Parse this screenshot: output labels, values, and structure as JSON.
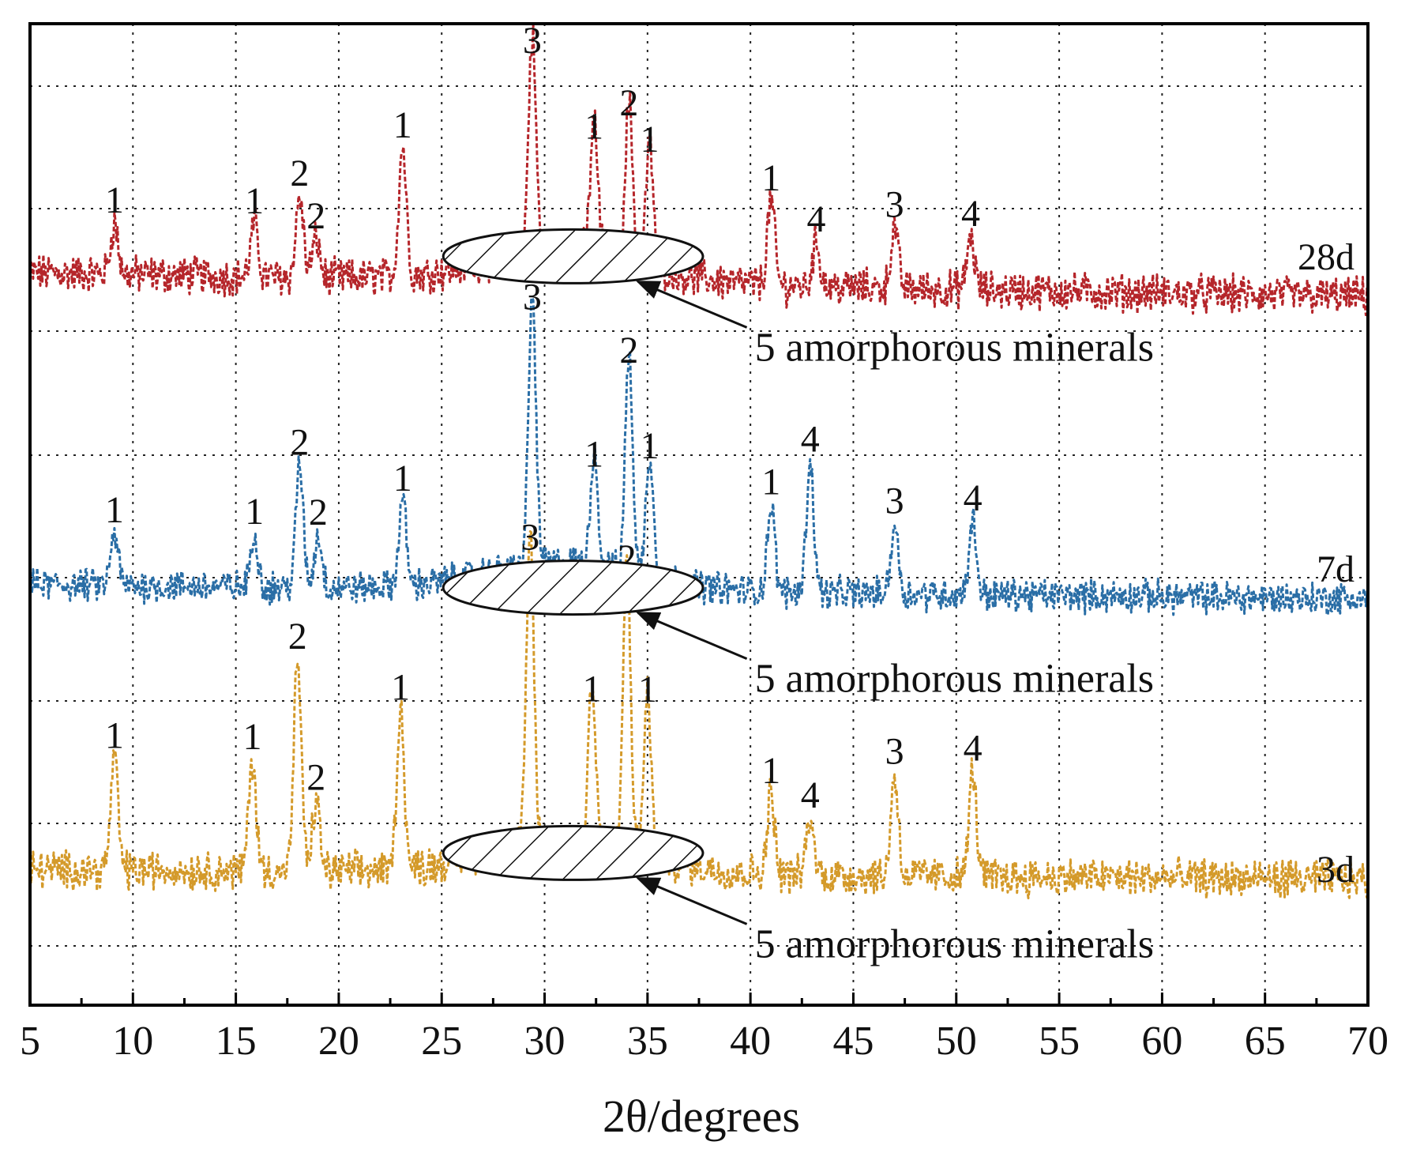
{
  "chart_data": {
    "type": "line",
    "title": "",
    "xlabel": "2θ/degrees",
    "ylabel": "",
    "xlim": [
      5,
      70
    ],
    "grid": true,
    "x_ticks": [
      5,
      10,
      15,
      20,
      25,
      30,
      35,
      40,
      45,
      50,
      55,
      60,
      65,
      70
    ],
    "series": [
      {
        "name": "28d",
        "color": "#b5252a",
        "baseline": 0.0,
        "baseline_end": -0.12,
        "peaks": [
          {
            "x": 9.1,
            "height": 0.25,
            "label": "1"
          },
          {
            "x": 15.9,
            "height": 0.26,
            "label": "1"
          },
          {
            "x": 18.1,
            "height": 0.4,
            "label": "2"
          },
          {
            "x": 18.9,
            "height": 0.19,
            "label": "2"
          },
          {
            "x": 23.1,
            "height": 0.65,
            "label": "1"
          },
          {
            "x": 29.4,
            "height": 1.08,
            "label": "3"
          },
          {
            "x": 32.4,
            "height": 0.66,
            "label": "1"
          },
          {
            "x": 34.1,
            "height": 0.78,
            "label": "2"
          },
          {
            "x": 35.1,
            "height": 0.6,
            "label": "1"
          },
          {
            "x": 41.0,
            "height": 0.42,
            "label": "1"
          },
          {
            "x": 43.2,
            "height": 0.22,
            "label": "4"
          },
          {
            "x": 47.0,
            "height": 0.3,
            "label": "3"
          },
          {
            "x": 50.7,
            "height": 0.26,
            "label": "4"
          }
        ],
        "amorphous_zone": [
          25,
          37
        ],
        "annotation": "5 amorphorous minerals"
      },
      {
        "name": "7d",
        "color": "#2a6ea6",
        "baseline": 0.0,
        "baseline_end": -0.08,
        "peaks": [
          {
            "x": 9.1,
            "height": 0.3,
            "label": "1"
          },
          {
            "x": 15.9,
            "height": 0.3,
            "label": "1"
          },
          {
            "x": 18.1,
            "height": 0.7,
            "label": "2"
          },
          {
            "x": 19.0,
            "height": 0.3,
            "label": "2"
          },
          {
            "x": 23.1,
            "height": 0.5,
            "label": "1"
          },
          {
            "x": 29.4,
            "height": 1.55,
            "label": "3"
          },
          {
            "x": 32.4,
            "height": 0.65,
            "label": "1"
          },
          {
            "x": 34.1,
            "height": 1.25,
            "label": "2"
          },
          {
            "x": 35.1,
            "height": 0.7,
            "label": "1"
          },
          {
            "x": 41.0,
            "height": 0.5,
            "label": "1"
          },
          {
            "x": 42.9,
            "height": 0.75,
            "label": "4"
          },
          {
            "x": 47.0,
            "height": 0.4,
            "label": "3"
          },
          {
            "x": 50.8,
            "height": 0.42,
            "label": "4"
          }
        ],
        "amorphous_zone": [
          25,
          37
        ],
        "annotation": "5 amorphorous minerals"
      },
      {
        "name": "3d",
        "color": "#d49a2a",
        "baseline": 0.0,
        "baseline_end": -0.05,
        "peaks": [
          {
            "x": 9.1,
            "height": 0.55,
            "label": "1"
          },
          {
            "x": 15.8,
            "height": 0.55,
            "label": "1"
          },
          {
            "x": 18.0,
            "height": 1.05,
            "label": "2"
          },
          {
            "x": 18.9,
            "height": 0.35,
            "label": "2"
          },
          {
            "x": 23.0,
            "height": 0.8,
            "label": "1"
          },
          {
            "x": 29.3,
            "height": 1.55,
            "label": "3"
          },
          {
            "x": 32.3,
            "height": 0.8,
            "label": "1"
          },
          {
            "x": 34.0,
            "height": 1.45,
            "label": "2"
          },
          {
            "x": 35.0,
            "height": 0.8,
            "label": "1"
          },
          {
            "x": 41.0,
            "height": 0.4,
            "label": "1"
          },
          {
            "x": 42.9,
            "height": 0.28,
            "label": "4"
          },
          {
            "x": 47.0,
            "height": 0.5,
            "label": "3"
          },
          {
            "x": 50.8,
            "height": 0.52,
            "label": "4"
          }
        ],
        "amorphous_zone": [
          25,
          37
        ],
        "annotation": "5 amorphorous minerals"
      }
    ]
  }
}
